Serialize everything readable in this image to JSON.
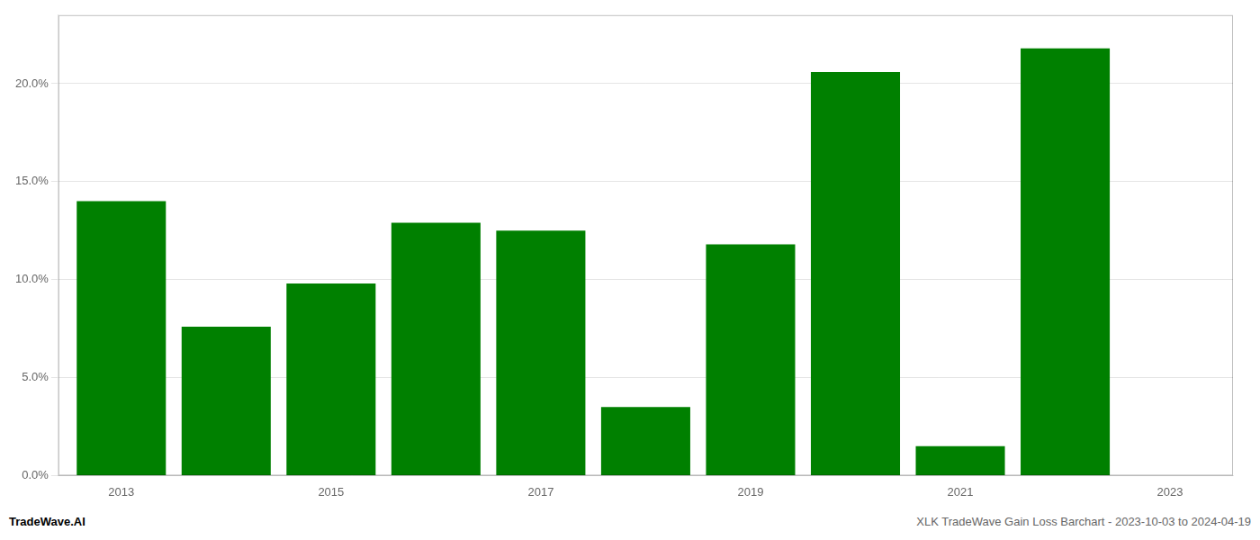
{
  "chart_data": {
    "type": "bar",
    "x": [
      2013,
      2014,
      2015,
      2016,
      2017,
      2018,
      2019,
      2020,
      2021,
      2022
    ],
    "values": [
      0.14,
      0.076,
      0.098,
      0.129,
      0.125,
      0.035,
      0.118,
      0.206,
      0.015,
      0.218
    ],
    "color": "#008000",
    "xlim": [
      2012.4,
      2023.6
    ],
    "xticks": [
      2013,
      2015,
      2017,
      2019,
      2021,
      2023
    ],
    "ylim": [
      0,
      0.235
    ],
    "yticks": [
      {
        "value": 0.0,
        "label": "0.0%"
      },
      {
        "value": 0.05,
        "label": "5.0%"
      },
      {
        "value": 0.1,
        "label": "10.0%"
      },
      {
        "value": 0.15,
        "label": "15.0%"
      },
      {
        "value": 0.2,
        "label": "20.0%"
      }
    ],
    "grid": true,
    "annotations": [
      "TradeWave.AI",
      "XLK TradeWave Gain Loss Barchart - 2023-10-03 to 2024-04-19"
    ]
  }
}
